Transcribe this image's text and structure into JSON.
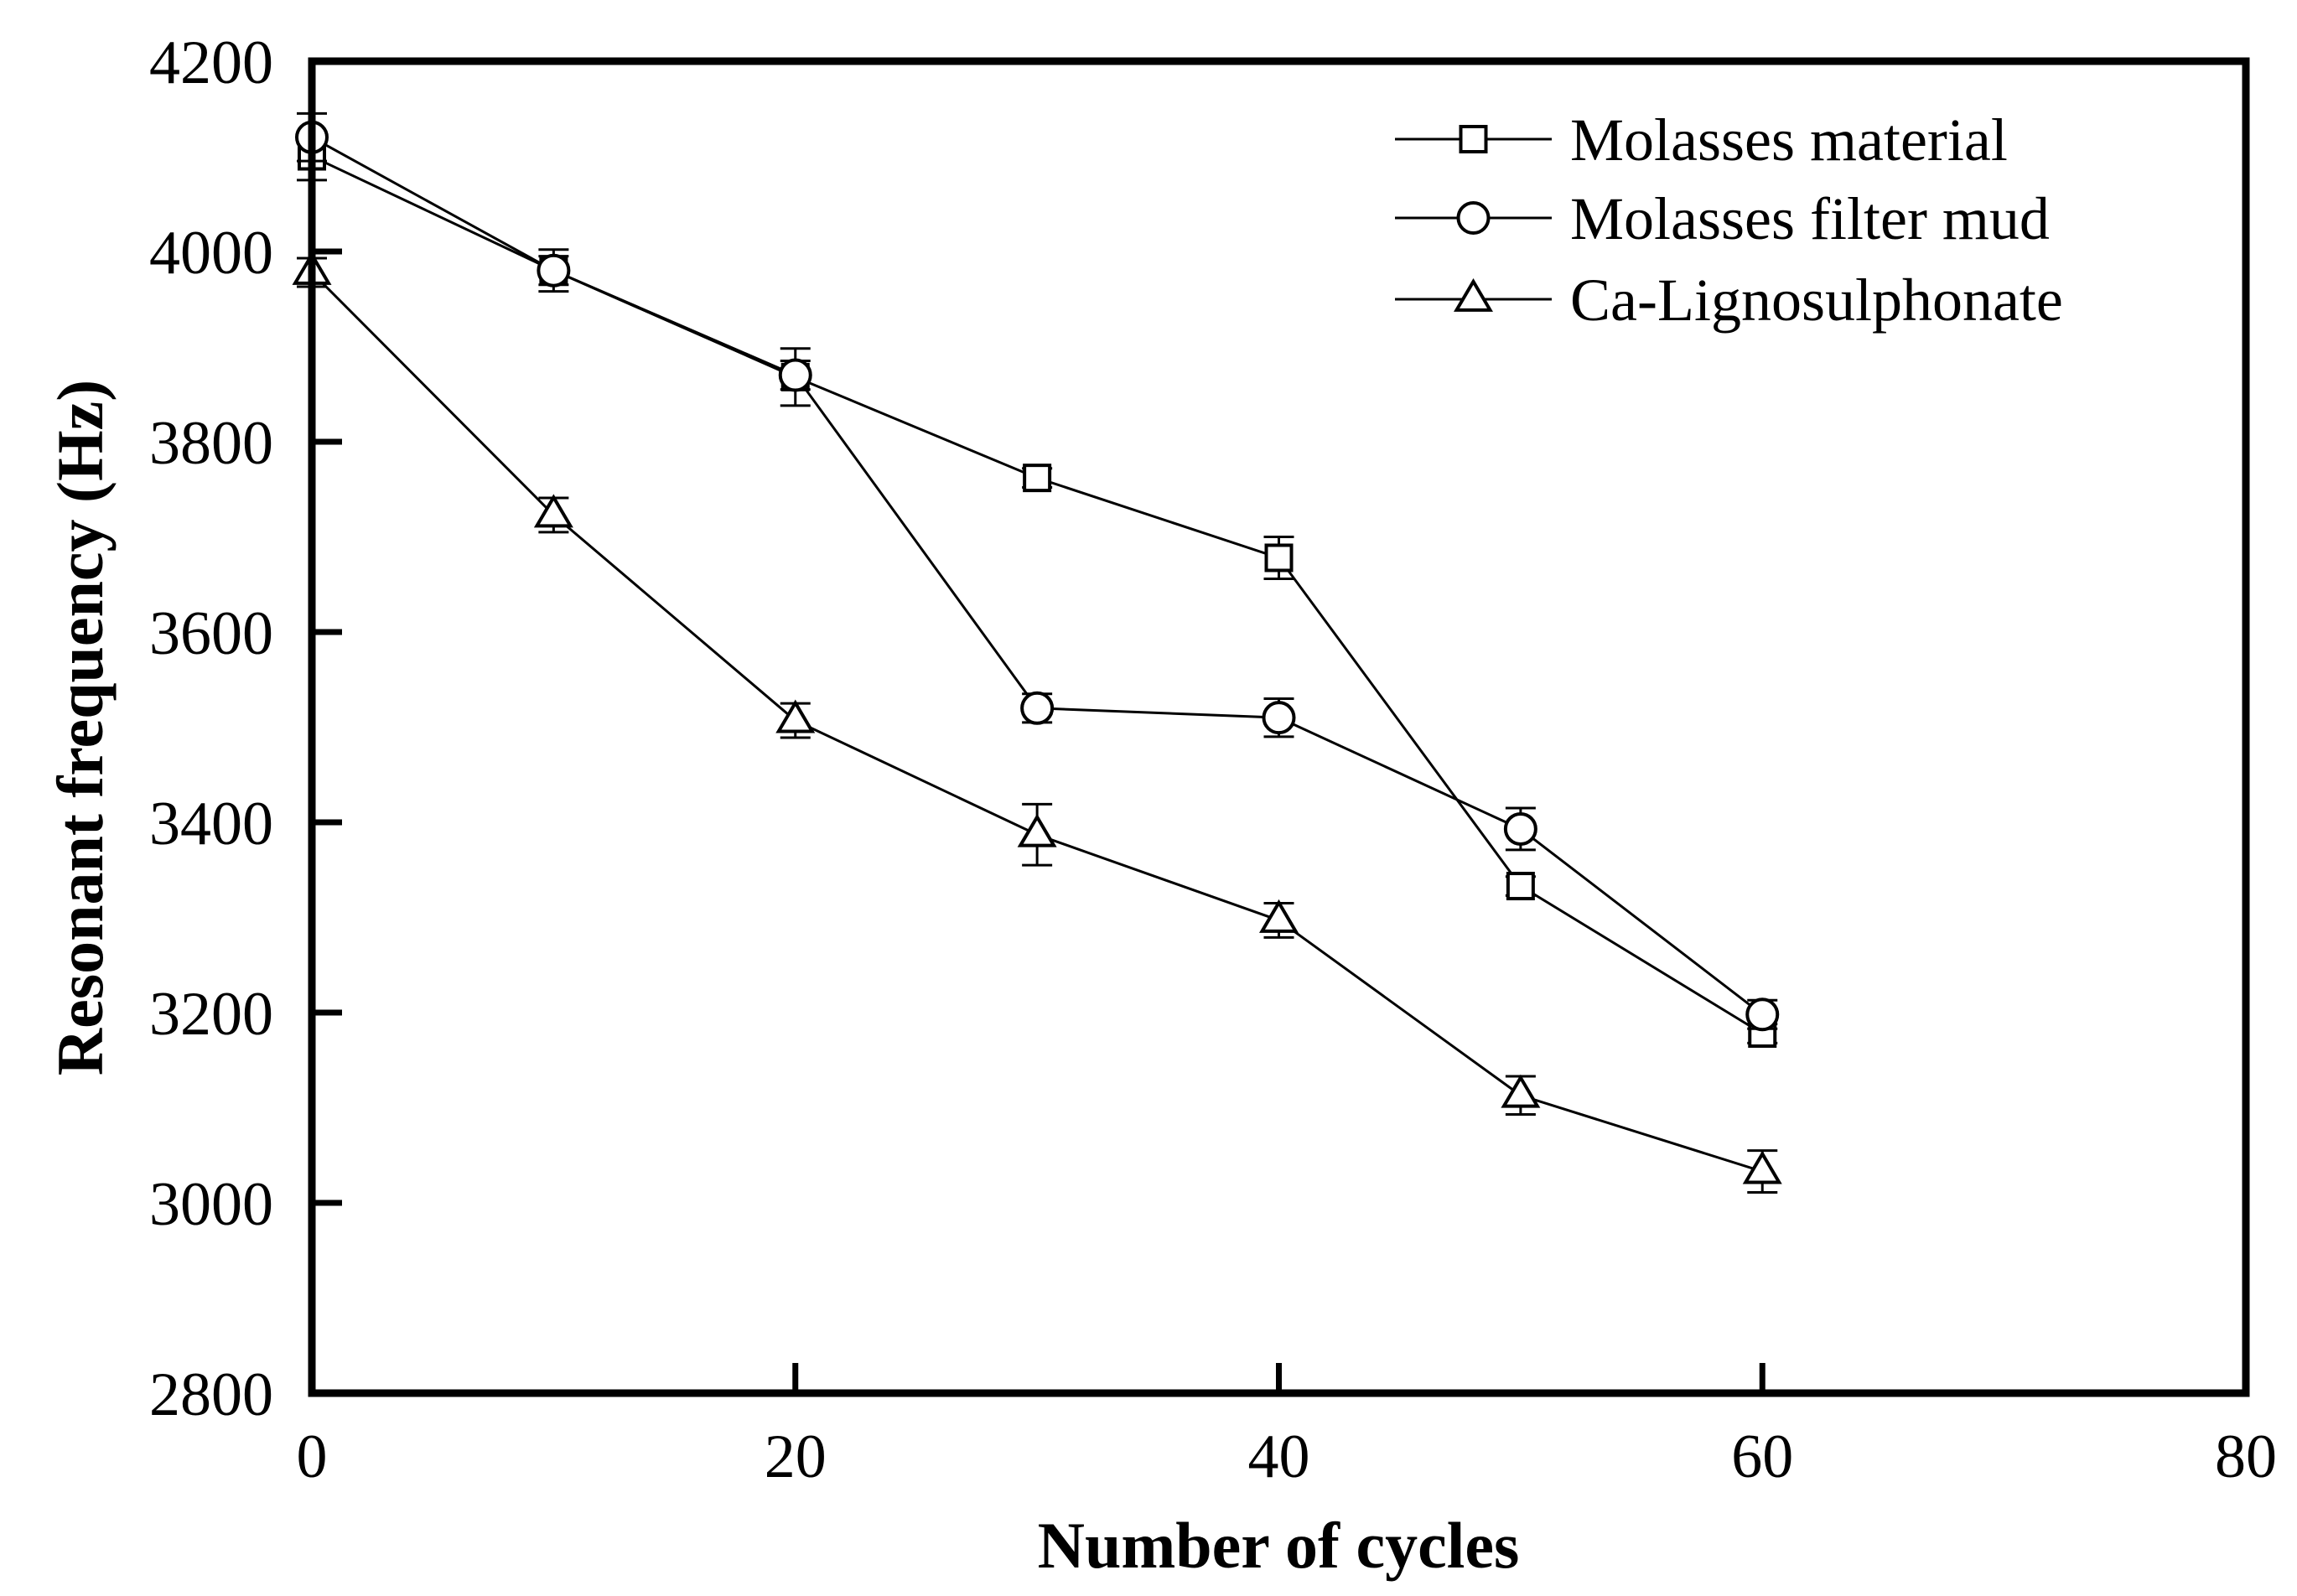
{
  "chart_data": {
    "type": "line",
    "title": "",
    "xlabel": "Number of cycles",
    "ylabel": "Resonant frequency (Hz)",
    "xlim": [
      0,
      80
    ],
    "ylim": [
      2800,
      4200
    ],
    "xticks": [
      0,
      20,
      40,
      60,
      80
    ],
    "yticks": [
      2800,
      3000,
      3200,
      3400,
      3600,
      3800,
      4000,
      4200
    ],
    "grid": false,
    "legend_position": "top-right",
    "series": [
      {
        "name": "Molasses material",
        "marker": "square",
        "x": [
          0,
          10,
          20,
          30,
          40,
          50,
          60
        ],
        "y": [
          4100,
          3980,
          3868,
          3762,
          3678,
          3333,
          3178
        ],
        "error": [
          25,
          15,
          30,
          10,
          22,
          10,
          10
        ]
      },
      {
        "name": "Molasses filter mud",
        "marker": "circle",
        "x": [
          0,
          10,
          20,
          30,
          40,
          50,
          60
        ],
        "y": [
          4120,
          3980,
          3870,
          3520,
          3510,
          3393,
          3198
        ],
        "error": [
          25,
          22,
          15,
          15,
          20,
          22,
          15
        ]
      },
      {
        "name": "Ca-Lignosulphonate",
        "marker": "triangle",
        "x": [
          0,
          10,
          20,
          30,
          40,
          50,
          60
        ],
        "y": [
          3978,
          3723,
          3507,
          3387,
          3297,
          3113,
          3033
        ],
        "error": [
          15,
          18,
          18,
          32,
          18,
          20,
          22
        ]
      }
    ]
  },
  "colors": {
    "line": "#000000",
    "background": "#ffffff"
  }
}
